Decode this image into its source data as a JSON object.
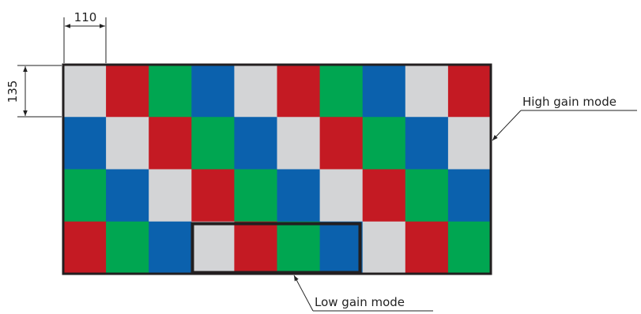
{
  "dimensions": {
    "width_label": "110",
    "height_label": "135"
  },
  "labels": {
    "high_gain": "High gain mode",
    "low_gain": "Low gain mode"
  },
  "colors": {
    "W": "#d3d4d6",
    "R": "#c41a23",
    "G": "#00a651",
    "B": "#0b61ad",
    "outline": "#231f20"
  },
  "grid": {
    "rows": [
      [
        "W",
        "R",
        "G",
        "B",
        "W",
        "R",
        "G",
        "B",
        "W",
        "R"
      ],
      [
        "B",
        "W",
        "R",
        "G",
        "B",
        "W",
        "R",
        "G",
        "B",
        "W"
      ],
      [
        "G",
        "B",
        "W",
        "R",
        "G",
        "B",
        "W",
        "R",
        "G",
        "B"
      ],
      [
        "R",
        "G",
        "B",
        "W",
        "R",
        "G",
        "B",
        "W",
        "R",
        "G"
      ]
    ]
  }
}
